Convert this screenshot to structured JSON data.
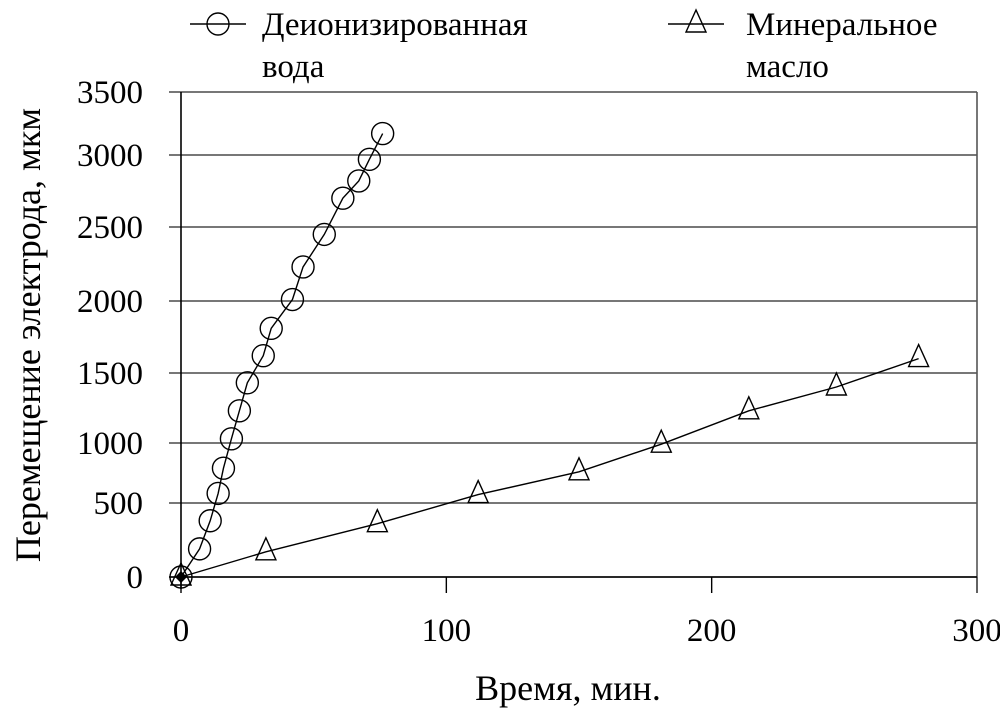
{
  "chart_data": {
    "type": "line",
    "title": "",
    "xlabel": "Время, мин.",
    "ylabel": "Перемещение электрода, мкм",
    "xlim": [
      0,
      300
    ],
    "ylim": [
      0,
      3500
    ],
    "xticks": [
      0,
      100,
      200,
      300
    ],
    "yticks": [
      0,
      500,
      1000,
      1500,
      2000,
      2500,
      3000,
      3500
    ],
    "grid": "horizontal",
    "legend_position": "top",
    "series": [
      {
        "name": "Деионизированная вода",
        "legend_line1": "Деионизированная",
        "legend_line2": "вода",
        "marker": "circle-open",
        "x": [
          0,
          7,
          11,
          14,
          16,
          19,
          22,
          25,
          31,
          34,
          42,
          46,
          54,
          61,
          67,
          71,
          76
        ],
        "y": [
          0,
          190,
          380,
          580,
          790,
          1030,
          1230,
          1430,
          1620,
          1810,
          2010,
          2230,
          2450,
          2700,
          2820,
          2970,
          3170
        ]
      },
      {
        "name": "Минеральное масло",
        "legend_line1": "Минеральное",
        "legend_line2": "масло",
        "marker": "triangle-open",
        "x": [
          0,
          32,
          74,
          112,
          150,
          181,
          214,
          247,
          278
        ],
        "y": [
          0,
          170,
          360,
          570,
          760,
          990,
          1230,
          1400,
          1600
        ]
      }
    ]
  },
  "colors": {
    "line": "#000000",
    "grid": "#4a4a4a",
    "background": "#ffffff"
  }
}
